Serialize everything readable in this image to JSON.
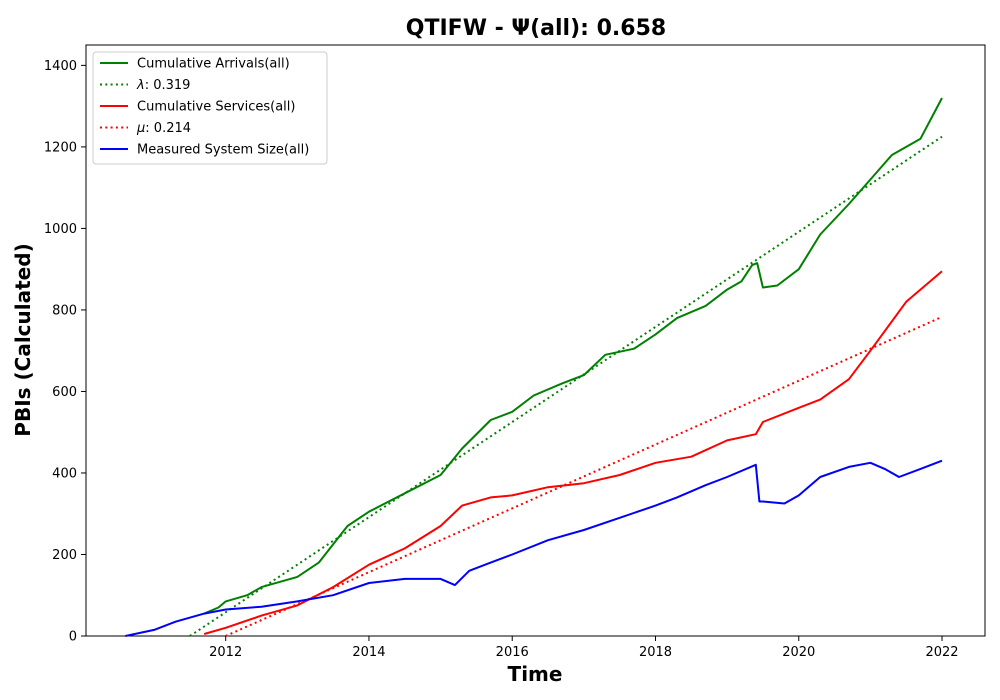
{
  "chart_data": {
    "type": "line",
    "title": "QTIFW -  Ψ(all): 0.658",
    "xlabel": "Time",
    "ylabel": "PBIs (Calculated)",
    "xlim": [
      2010.05,
      2022.6
    ],
    "ylim": [
      0,
      1450
    ],
    "xticks": [
      2012,
      2014,
      2016,
      2018,
      2020,
      2022
    ],
    "yticks": [
      0,
      200,
      400,
      600,
      800,
      1000,
      1200,
      1400
    ],
    "legend_position": "upper-left",
    "series": [
      {
        "name": "Cumulative Arrivals(all)",
        "color": "#008000",
        "style": "solid",
        "x": [
          2011.7,
          2011.9,
          2012.0,
          2012.3,
          2012.5,
          2013.0,
          2013.3,
          2013.7,
          2014.0,
          2014.5,
          2015.0,
          2015.3,
          2015.7,
          2016.0,
          2016.3,
          2016.7,
          2017.0,
          2017.3,
          2017.7,
          2018.0,
          2018.3,
          2018.7,
          2019.0,
          2019.2,
          2019.35,
          2019.42,
          2019.5,
          2019.7,
          2020.0,
          2020.3,
          2020.7,
          2021.0,
          2021.3,
          2021.7,
          2022.0
        ],
        "y": [
          55,
          70,
          85,
          100,
          120,
          145,
          180,
          270,
          305,
          350,
          395,
          460,
          530,
          550,
          590,
          620,
          640,
          690,
          705,
          740,
          780,
          810,
          850,
          870,
          910,
          915,
          855,
          860,
          900,
          985,
          1060,
          1120,
          1180,
          1220,
          1320
        ]
      },
      {
        "name": "λ: 0.319",
        "label_prefix": "λ",
        "label_value": ": 0.319",
        "color": "#008000",
        "style": "dotted",
        "x": [
          2011.5,
          2022.0
        ],
        "y": [
          0,
          1225
        ]
      },
      {
        "name": "Cumulative Services(all)",
        "color": "#ff0000",
        "style": "solid",
        "x": [
          2011.7,
          2012.0,
          2012.5,
          2013.0,
          2013.5,
          2014.0,
          2014.5,
          2015.0,
          2015.3,
          2015.7,
          2016.0,
          2016.5,
          2017.0,
          2017.5,
          2018.0,
          2018.5,
          2019.0,
          2019.4,
          2019.5,
          2020.0,
          2020.3,
          2020.7,
          2021.0,
          2021.5,
          2022.0
        ],
        "y": [
          5,
          20,
          50,
          75,
          120,
          175,
          215,
          270,
          320,
          340,
          345,
          365,
          375,
          395,
          425,
          440,
          480,
          495,
          525,
          560,
          580,
          630,
          700,
          820,
          895
        ]
      },
      {
        "name": "μ: 0.214",
        "label_prefix": "μ",
        "label_value": ": 0.214",
        "color": "#ff0000",
        "style": "dotted",
        "x": [
          2012.0,
          2022.0
        ],
        "y": [
          0,
          783
        ]
      },
      {
        "name": "Measured System Size(all)",
        "color": "#0000ff",
        "style": "solid",
        "x": [
          2010.6,
          2011.0,
          2011.3,
          2011.7,
          2012.0,
          2012.5,
          2013.0,
          2013.5,
          2014.0,
          2014.5,
          2015.0,
          2015.2,
          2015.4,
          2015.7,
          2016.0,
          2016.5,
          2017.0,
          2017.5,
          2018.0,
          2018.3,
          2018.7,
          2019.0,
          2019.4,
          2019.45,
          2019.5,
          2019.8,
          2020.0,
          2020.3,
          2020.7,
          2021.0,
          2021.2,
          2021.4,
          2021.7,
          2022.0
        ],
        "y": [
          0,
          15,
          35,
          55,
          65,
          72,
          85,
          100,
          130,
          140,
          140,
          125,
          160,
          180,
          200,
          235,
          260,
          290,
          320,
          340,
          370,
          390,
          420,
          330,
          330,
          325,
          345,
          390,
          415,
          425,
          410,
          390,
          410,
          430
        ]
      }
    ]
  }
}
